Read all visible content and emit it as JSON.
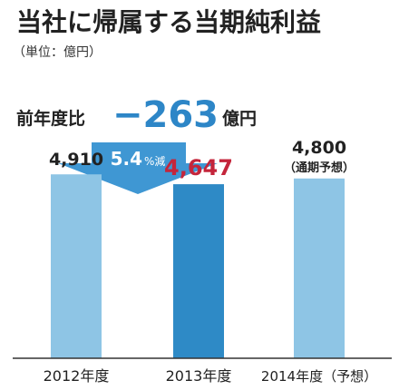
{
  "title": "当社に帰属する当期純利益",
  "unit": "（単位：億円）",
  "comparison": {
    "label": "前年度比",
    "value": "−263",
    "unit": "億円",
    "change_rate": "5.4",
    "change_suffix": "%減"
  },
  "colors": {
    "bar_light": "#8ec5e5",
    "bar_highlight": "#2e8ac6",
    "arrow": "#3f97d3",
    "accent_blue": "#2d86c7",
    "highlight_value": "#c4253b",
    "text": "#222222",
    "axis": "#333333"
  },
  "chart_data": {
    "type": "bar",
    "title": "当社に帰属する当期純利益",
    "unit_label": "（単位：億円）",
    "categories": [
      "2012年度",
      "2013年度",
      "2014年度（予想）"
    ],
    "values": [
      4910,
      4647,
      4800
    ],
    "value_labels": [
      "4,910",
      "4,647",
      "4,800"
    ],
    "value_sublabels": [
      "",
      "",
      "（通期予想）"
    ],
    "highlight_index": 1,
    "ylim": [
      0,
      5400
    ],
    "grid": false,
    "legend": "none"
  }
}
